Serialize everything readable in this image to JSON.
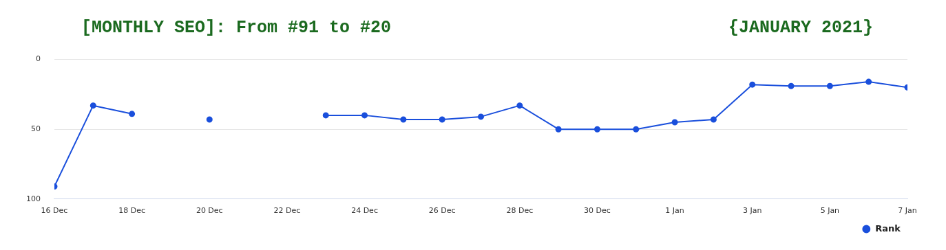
{
  "chart_data": {
    "type": "line",
    "title": "[MONTHLY SEO]: From #91 to #20",
    "subtitle": "{JANUARY 2021}",
    "x": [
      "2020-12-16",
      "2020-12-17",
      "2020-12-18",
      "2020-12-19",
      "2020-12-20",
      "2020-12-21",
      "2020-12-22",
      "2020-12-23",
      "2020-12-24",
      "2020-12-25",
      "2020-12-26",
      "2020-12-27",
      "2020-12-28",
      "2020-12-29",
      "2020-12-30",
      "2020-12-31",
      "2021-01-01",
      "2021-01-02",
      "2021-01-03",
      "2021-01-04",
      "2021-01-05",
      "2021-01-06",
      "2021-01-07"
    ],
    "series": [
      {
        "name": "Rank",
        "color": "#1a4fdc",
        "values": [
          91,
          33,
          39,
          null,
          43,
          null,
          null,
          40,
          40,
          43,
          43,
          41,
          33,
          50,
          50,
          50,
          45,
          43,
          18,
          19,
          19,
          16,
          20
        ]
      }
    ],
    "ylim": [
      100,
      0
    ],
    "yticks": [
      0,
      50,
      100
    ],
    "xlim": [
      "2020-12-16",
      "2021-01-07"
    ],
    "xticks": [
      {
        "value": "2020-12-16",
        "label": "16 Dec"
      },
      {
        "value": "2020-12-18",
        "label": "18 Dec"
      },
      {
        "value": "2020-12-20",
        "label": "20 Dec"
      },
      {
        "value": "2020-12-22",
        "label": "22 Dec"
      },
      {
        "value": "2020-12-24",
        "label": "24 Dec"
      },
      {
        "value": "2020-12-26",
        "label": "26 Dec"
      },
      {
        "value": "2020-12-28",
        "label": "28 Dec"
      },
      {
        "value": "2020-12-30",
        "label": "30 Dec"
      },
      {
        "value": "2021-01-01",
        "label": "1 Jan"
      },
      {
        "value": "2021-01-03",
        "label": "3 Jan"
      },
      {
        "value": "2021-01-05",
        "label": "5 Jan"
      },
      {
        "value": "2021-01-07",
        "label": "7 Jan"
      }
    ],
    "grid": "y",
    "legend": "bottom right",
    "marker": "circle",
    "line_style": "solid"
  }
}
